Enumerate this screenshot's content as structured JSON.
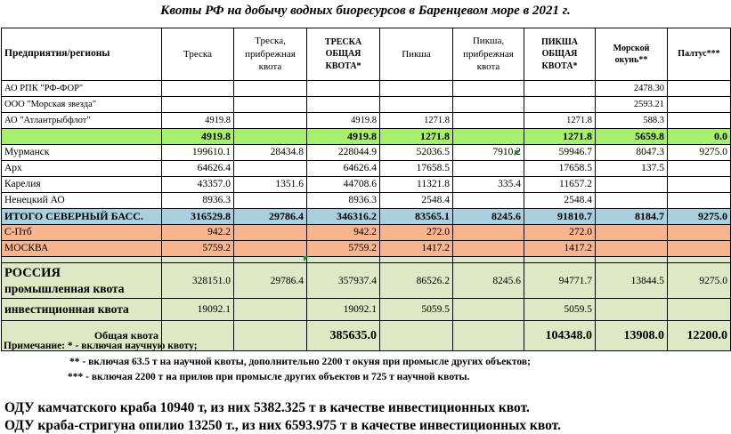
{
  "title": "Квоты РФ на добычу водных биоресурсов в Баренцевом море в 2021 г.",
  "headers": [
    "Предприятия/регионы",
    "Треска",
    "Треска, прибрежная квота",
    "ТРЕСКА ОБЩАЯ КВОТА*",
    "Пикша",
    "Пикша, прибрежная квота",
    "ПИКША ОБЩАЯ КВОТА*",
    "Морской окунь**",
    "Палтус***"
  ],
  "rows": [
    {
      "name": "АО РПК \"РФ-ФОР\"",
      "vals": [
        "",
        "",
        "",
        "",
        "",
        "",
        "2478.30",
        ""
      ]
    },
    {
      "name": "ООО \"Морская звезда\"",
      "vals": [
        "",
        "",
        "",
        "",
        "",
        "",
        "2593.21",
        ""
      ]
    },
    {
      "name": "АО \"Атлантрыбфлот\"",
      "vals": [
        "4919.8",
        "",
        "4919.8",
        "1271.8",
        "",
        "1271.8",
        "588.3",
        ""
      ]
    },
    {
      "name": "",
      "vals": [
        "4919.8",
        "",
        "4919.8",
        "1271.8",
        "",
        "1271.8",
        "5659.8",
        "0.0"
      ]
    },
    {
      "name": "Мурманск",
      "vals": [
        "199610.1",
        "28434.8",
        "228044.9",
        "52036.5",
        "7910.2",
        "59946.7",
        "8047.3",
        "9275.0"
      ]
    },
    {
      "name": "Арх",
      "vals": [
        "64626.4",
        "",
        "64626.4",
        "17658.5",
        "",
        "17658.5",
        "137.5",
        ""
      ]
    },
    {
      "name": "Карелия",
      "vals": [
        "43357.0",
        "1351.6",
        "44708.6",
        "11321.8",
        "335.4",
        "11657.2",
        "",
        ""
      ]
    },
    {
      "name": "Ненецкий АО",
      "vals": [
        "8936.3",
        "",
        "8936.3",
        "2548.4",
        "",
        "2548.4",
        "",
        ""
      ]
    },
    {
      "name": "ИТОГО СЕВЕРНЫЙ БАСС.",
      "vals": [
        "316529.8",
        "29786.4",
        "346316.2",
        "83565.1",
        "8245.6",
        "91810.7",
        "8184.7",
        "9275.0"
      ]
    },
    {
      "name": "С-Птб",
      "vals": [
        "942.2",
        "",
        "942.2",
        "272.0",
        "",
        "272.0",
        "",
        ""
      ]
    },
    {
      "name": "МОСКВА",
      "vals": [
        "5759.2",
        "",
        "5759.2",
        "1417.2",
        "",
        "1417.2",
        "",
        ""
      ]
    }
  ],
  "russia": {
    "name_line1": "РОССИЯ",
    "name_line2": "промышленная квота",
    "vals": [
      "328151.0",
      "29786.4",
      "357937.4",
      "86526.2",
      "8245.6",
      "94771.7",
      "13844.5",
      "9275.0"
    ]
  },
  "invest": {
    "name": "инвестиционная квота",
    "vals": [
      "19092.1",
      "",
      "19092.1",
      "5059.5",
      "",
      "5059.5",
      "",
      ""
    ]
  },
  "total": {
    "name": "Общая квота",
    "vals": [
      "",
      "",
      "385635.0",
      "",
      "",
      "104348.0",
      "13908.0",
      "12200.0"
    ]
  },
  "notes": [
    "Примечание: * - включая научную квоту;",
    "** - включая 63.5 т на научной квоты, дополнительно 2200 т  окуня при промысле других объектов;",
    "*** - включая 2200 т на прилов при промысле других объектов и 725 т научной квоты."
  ],
  "odu": [
    "ОДУ камчатского краба 10940 т, из них 5382.325 т в качестве инвестиционных квот.",
    "ОДУ краба-стригуна опилио 13250 т., из них 6593.975 т в качестве инвестиционных квот."
  ],
  "colors": {
    "green": "#a6f06e",
    "blue": "#a9cfe0",
    "orange": "#f6b48f",
    "lime": "#dde9c4"
  }
}
